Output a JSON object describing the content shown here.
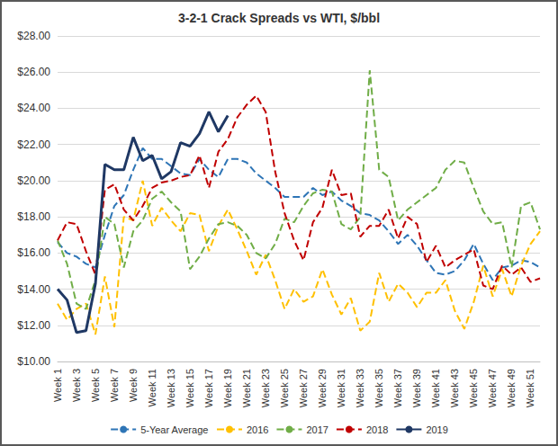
{
  "chart_data": {
    "type": "line",
    "title": "3-2-1 Crack Spreads vs WTI, $/bbl",
    "categories": [
      "Week 1",
      null,
      "Week 3",
      null,
      "Week 5",
      null,
      "Week 7",
      null,
      "Week 9",
      null,
      "Week 11",
      null,
      "Week 13",
      null,
      "Week 15",
      null,
      "Week 17",
      null,
      "Week 19",
      null,
      "Week 21",
      null,
      "Week 23",
      null,
      "Week 25",
      null,
      "Week 27",
      null,
      "Week 29",
      null,
      "Week 31",
      null,
      "Week 33",
      null,
      "Week 35",
      null,
      "Week 37",
      null,
      "Week 39",
      null,
      "Week 41",
      null,
      "Week 43",
      null,
      "Week 45",
      null,
      "Week 47",
      null,
      "Week 49",
      null,
      "Week 51",
      null
    ],
    "series": [
      {
        "name": "5-Year Average",
        "color": "#2e75b6",
        "line_style": "dashed",
        "values": [
          16.6,
          16.0,
          15.8,
          15.4,
          15.2,
          17.0,
          18.6,
          19.2,
          20.6,
          21.8,
          21.2,
          21.2,
          20.8,
          20.4,
          20.3,
          21.2,
          20.6,
          20.2,
          21.2,
          21.2,
          21.0,
          20.4,
          20.0,
          19.6,
          19.1,
          19.1,
          19.1,
          19.6,
          19.2,
          19.4,
          18.9,
          18.6,
          18.2,
          18.1,
          17.8,
          17.2,
          16.5,
          17.0,
          16.4,
          15.6,
          14.9,
          14.8,
          15.0,
          15.6,
          16.5,
          15.4,
          14.5,
          15.2,
          15.3,
          15.6,
          15.5,
          15.2
        ]
      },
      {
        "name": "2016",
        "color": "#ffc000",
        "line_style": "dashed",
        "values": [
          13.2,
          12.3,
          12.9,
          13.2,
          11.5,
          14.7,
          11.9,
          18.0,
          17.8,
          20.0,
          17.5,
          18.5,
          17.8,
          17.2,
          18.2,
          18.1,
          16.1,
          17.5,
          18.4,
          17.3,
          16.1,
          14.8,
          15.9,
          14.5,
          12.9,
          14.0,
          13.3,
          13.6,
          15.1,
          13.7,
          12.6,
          13.5,
          11.7,
          12.2,
          14.9,
          13.3,
          14.3,
          13.8,
          13.0,
          13.8,
          13.8,
          14.5,
          12.8,
          11.8,
          13.3,
          15.3,
          13.6,
          15.1,
          13.6,
          15.3,
          16.5,
          17.2
        ]
      },
      {
        "name": "2017",
        "color": "#70ad47",
        "line_style": "dashed",
        "values": [
          16.7,
          15.4,
          13.2,
          12.9,
          14.5,
          18.0,
          17.6,
          15.2,
          17.2,
          17.8,
          19.0,
          19.4,
          18.8,
          18.3,
          15.1,
          15.8,
          16.8,
          17.6,
          17.7,
          17.5,
          17.0,
          16.0,
          15.7,
          16.5,
          17.9,
          17.7,
          18.6,
          19.3,
          19.5,
          19.4,
          17.6,
          17.3,
          18.0,
          26.1,
          20.6,
          20.2,
          17.8,
          18.4,
          18.8,
          19.2,
          19.6,
          20.6,
          21.1,
          21.0,
          19.6,
          18.3,
          17.6,
          17.7,
          15.2,
          18.6,
          18.8,
          17.3
        ]
      },
      {
        "name": "2018",
        "color": "#c00000",
        "line_style": "dashed",
        "values": [
          16.7,
          17.7,
          17.6,
          16.1,
          14.8,
          19.5,
          19.8,
          18.4,
          17.8,
          18.6,
          19.6,
          19.9,
          20.0,
          20.2,
          20.3,
          21.4,
          19.6,
          21.6,
          22.3,
          23.5,
          24.2,
          24.7,
          23.8,
          20.5,
          18.2,
          16.7,
          15.6,
          17.7,
          18.5,
          20.6,
          19.2,
          19.3,
          16.9,
          17.5,
          17.5,
          18.4,
          16.8,
          18.0,
          17.6,
          15.5,
          16.4,
          15.2,
          15.6,
          15.9,
          16.2,
          14.2,
          14.0,
          15.3,
          14.8,
          15.2,
          14.4,
          14.6
        ]
      },
      {
        "name": "2019",
        "color": "#1f3864",
        "line_style": "solid",
        "values": [
          14.0,
          13.4,
          11.6,
          11.7,
          14.3,
          20.9,
          20.6,
          20.6,
          22.4,
          21.1,
          21.4,
          20.1,
          20.5,
          22.1,
          21.9,
          22.6,
          23.8,
          22.7,
          23.6,
          null,
          null,
          null,
          null,
          null,
          null,
          null,
          null,
          null,
          null,
          null,
          null,
          null,
          null,
          null,
          null,
          null,
          null,
          null,
          null,
          null,
          null,
          null,
          null,
          null,
          null,
          null,
          null,
          null,
          null,
          null,
          null,
          null
        ]
      }
    ],
    "ylim": [
      10,
      28
    ],
    "yticks": [
      {
        "value": 10,
        "label": "$10.00"
      },
      {
        "value": 12,
        "label": "$12.00"
      },
      {
        "value": 14,
        "label": "$14.00"
      },
      {
        "value": 16,
        "label": "$16.00"
      },
      {
        "value": 18,
        "label": "$18.00"
      },
      {
        "value": 20,
        "label": "$20.00"
      },
      {
        "value": 22,
        "label": "$22.00"
      },
      {
        "value": 24,
        "label": "$24.00"
      },
      {
        "value": 26,
        "label": "$26.00"
      },
      {
        "value": 28,
        "label": "$28.00"
      }
    ],
    "grid": true,
    "legend": "bottom",
    "marker": "none"
  }
}
